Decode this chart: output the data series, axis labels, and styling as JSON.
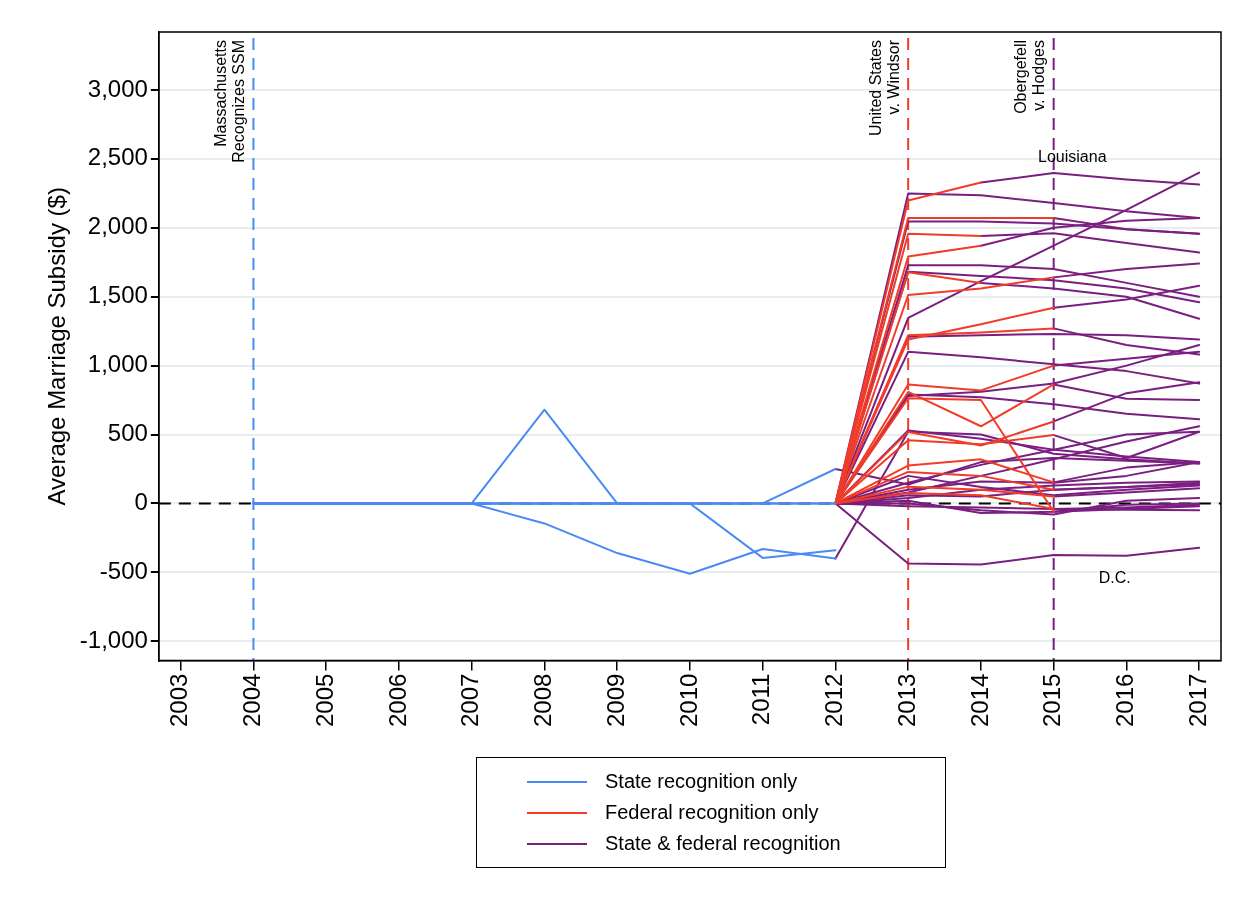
{
  "chart_data": {
    "type": "line",
    "ylabel": "Average Marriage Subsidy ($)",
    "xlim": [
      2002.7,
      2017.3
    ],
    "xticks": [
      2003,
      2004,
      2005,
      2006,
      2007,
      2008,
      2009,
      2010,
      2011,
      2012,
      2013,
      2014,
      2015,
      2016,
      2017
    ],
    "ylim": [
      -1140,
      3420
    ],
    "yticks": [
      {
        "value": -1000,
        "label": "-1,000"
      },
      {
        "value": -500,
        "label": "-500"
      },
      {
        "value": 0,
        "label": "0"
      },
      {
        "value": 500,
        "label": "500"
      },
      {
        "value": 1000,
        "label": "1,000"
      },
      {
        "value": 1500,
        "label": "1,500"
      },
      {
        "value": 2000,
        "label": "2,000"
      },
      {
        "value": 2500,
        "label": "2,500"
      },
      {
        "value": 3000,
        "label": "3,000"
      }
    ],
    "grid": "y",
    "legend": "bottom",
    "marker": "none",
    "line_style": "solid",
    "ref_lines": [
      {
        "axis": "y",
        "value": 0,
        "label": null,
        "color": "#000000",
        "line_style": "dashed"
      },
      {
        "axis": "x",
        "value": 2004,
        "label": "Massachusetts\nRecognizes SSM",
        "color": "#4a8af4",
        "line_style": "dashed"
      },
      {
        "axis": "x",
        "value": 2013,
        "label": "United States\nv. Windsor",
        "color": "#f03c28",
        "line_style": "dashed"
      },
      {
        "axis": "x",
        "value": 2015,
        "label": "Obergefell\nv. Hodges",
        "color": "#7a1f80",
        "line_style": "dashed"
      }
    ],
    "annotations": [
      "Louisiana",
      "D.C."
    ],
    "series": [
      {
        "name": "State recognition only",
        "color": "#4a8af4",
        "x": [
          2004,
          2005,
          2006,
          2007,
          2008,
          2009,
          2010,
          2011,
          2012
        ],
        "values": [
          0,
          0,
          0,
          0,
          680,
          0,
          0,
          0,
          0
        ]
      },
      {
        "color": "#4a8af4",
        "x": [
          2004,
          2005,
          2006,
          2007,
          2008,
          2009,
          2010,
          2011,
          2012
        ],
        "values": [
          0,
          0,
          0,
          0,
          -145,
          -360,
          -510,
          -330,
          -400
        ]
      },
      {
        "color": "#4a8af4",
        "x": [
          2004,
          2005,
          2006,
          2007,
          2008,
          2009,
          2010,
          2011,
          2012
        ],
        "values": [
          0,
          0,
          0,
          0,
          0,
          0,
          0,
          -395,
          -340
        ]
      },
      {
        "color": "#4a8af4",
        "x": [
          2004,
          2005,
          2006,
          2007,
          2008,
          2009,
          2010,
          2011,
          2012
        ],
        "values": [
          0,
          0,
          0,
          0,
          0,
          0,
          0,
          0,
          250
        ]
      },
      {
        "color": "#4a8af4",
        "x": [
          2004,
          2005,
          2006,
          2007,
          2008,
          2009,
          2010,
          2011,
          2012
        ],
        "values": [
          0,
          0,
          0,
          0,
          0,
          0,
          0,
          0,
          0
        ]
      },
      {
        "name": "Federal recognition only",
        "color": "#f03c28",
        "x": [
          2012,
          2013,
          2014
        ],
        "values": [
          0,
          2198,
          2328
        ]
      },
      {
        "color": "#f03c28",
        "x": [
          2012,
          2013,
          2014,
          2015
        ],
        "values": [
          0,
          2071,
          2071,
          2071
        ]
      },
      {
        "color": "#f03c28",
        "x": [
          2012,
          2013,
          2014
        ],
        "values": [
          0,
          1957,
          1940
        ]
      },
      {
        "color": "#f03c28",
        "x": [
          2012,
          2013,
          2014
        ],
        "values": [
          0,
          1791,
          1870
        ]
      },
      {
        "color": "#f03c28",
        "x": [
          2012,
          2013,
          2014
        ],
        "values": [
          0,
          1677,
          1600
        ]
      },
      {
        "color": "#f03c28",
        "x": [
          2012,
          2013,
          2014,
          2015
        ],
        "values": [
          0,
          1512,
          1560,
          1640
        ]
      },
      {
        "color": "#f03c28",
        "x": [
          2012,
          2013,
          2014,
          2015
        ],
        "values": [
          0,
          1190,
          1300,
          1420
        ]
      },
      {
        "color": "#f03c28",
        "x": [
          2012,
          2013,
          2014,
          2015
        ],
        "values": [
          0,
          1220,
          1240,
          1270
        ]
      },
      {
        "color": "#f03c28",
        "x": [
          2012,
          2013,
          2014,
          2015
        ],
        "values": [
          0,
          863,
          820,
          1000
        ]
      },
      {
        "color": "#f03c28",
        "x": [
          2012,
          2013,
          2014,
          2015
        ],
        "values": [
          0,
          809,
          560,
          863
        ]
      },
      {
        "color": "#f03c28",
        "x": [
          2012,
          2013,
          2014,
          2015
        ],
        "values": [
          0,
          763,
          750,
          -60
        ]
      },
      {
        "color": "#f03c28",
        "x": [
          2012,
          2013,
          2014,
          2015
        ],
        "values": [
          0,
          519,
          420,
          595
        ]
      },
      {
        "color": "#f03c28",
        "x": [
          2012,
          2013,
          2014,
          2015
        ],
        "values": [
          0,
          458,
          430,
          496
        ]
      },
      {
        "color": "#f03c28",
        "x": [
          2012,
          2013,
          2014,
          2015
        ],
        "values": [
          0,
          275,
          320,
          153
        ]
      },
      {
        "color": "#f03c28",
        "x": [
          2012,
          2013,
          2014,
          2015
        ],
        "values": [
          0,
          229,
          200,
          99
        ]
      },
      {
        "color": "#f03c28",
        "x": [
          2012,
          2013,
          2014,
          2015
        ],
        "values": [
          0,
          122,
          100,
          50
        ]
      },
      {
        "color": "#f03c28",
        "x": [
          2012,
          2013,
          2014,
          2015
        ],
        "values": [
          0,
          76,
          60,
          -40
        ]
      },
      {
        "name": "State & federal recognition",
        "color": "#7a1f80",
        "x": [
          2012,
          2013,
          2014,
          2015,
          2016,
          2017
        ],
        "values": [
          0,
          2249,
          2236,
          2180,
          2120,
          2071
        ]
      },
      {
        "color": "#7a1f80",
        "x": [
          2012,
          2013,
          2014,
          2015,
          2016,
          2017
        ],
        "values": [
          0,
          2046,
          2046,
          2030,
          1990,
          1957
        ]
      },
      {
        "color": "#7a1f80",
        "x": [
          2012,
          2013,
          2014,
          2015,
          2016,
          2017
        ],
        "values": [
          0,
          1346,
          1613,
          1870,
          2130,
          2400
        ]
      },
      {
        "color": "#7a1f80",
        "x": [
          2012,
          2013,
          2014,
          2015,
          2016,
          2017
        ],
        "values": [
          0,
          1728,
          1728,
          1700,
          1600,
          1499
        ]
      },
      {
        "color": "#7a1f80",
        "x": [
          2012,
          2013,
          2014,
          2015,
          2016,
          2017
        ],
        "values": [
          0,
          1680,
          1650,
          1620,
          1560,
          1460
        ]
      },
      {
        "color": "#7a1f80",
        "x": [
          2012,
          2013,
          2014,
          2015,
          2016,
          2017
        ],
        "values": [
          0,
          1100,
          1060,
          1010,
          960,
          870
        ]
      },
      {
        "color": "#7a1f80",
        "x": [
          2012,
          2013,
          2014,
          2015,
          2016,
          2017
        ],
        "values": [
          0,
          1210,
          1220,
          1230,
          1220,
          1190
        ]
      },
      {
        "color": "#7a1f80",
        "x": [
          2012,
          2013,
          2014,
          2015,
          2016,
          2017
        ],
        "values": [
          0,
          780,
          810,
          870,
          1000,
          1150
        ]
      },
      {
        "color": "#7a1f80",
        "x": [
          2012,
          2013,
          2014,
          2015,
          2016,
          2017
        ],
        "values": [
          0,
          790,
          770,
          720,
          650,
          610
        ]
      },
      {
        "color": "#7a1f80",
        "x": [
          2012,
          2013,
          2014,
          2015,
          2016,
          2017
        ],
        "values": [
          0,
          530,
          470,
          390,
          340,
          300
        ]
      },
      {
        "color": "#7a1f80",
        "x": [
          2012,
          2013,
          2014,
          2015,
          2016,
          2017
        ],
        "values": [
          0,
          150,
          280,
          390,
          500,
          520
        ]
      },
      {
        "color": "#7a1f80",
        "x": [
          2012,
          2013,
          2014,
          2015,
          2016,
          2017
        ],
        "values": [
          0,
          80,
          200,
          320,
          450,
          560
        ]
      },
      {
        "color": "#7a1f80",
        "x": [
          2012,
          2013,
          2014,
          2015,
          2016,
          2017
        ],
        "values": [
          0,
          40,
          100,
          130,
          150,
          160
        ]
      },
      {
        "color": "#7a1f80",
        "x": [
          2012,
          2013,
          2014,
          2015,
          2016,
          2017
        ],
        "values": [
          0,
          -20,
          -30,
          -40,
          -45,
          -50
        ]
      },
      {
        "color": "#7a1f80",
        "x": [
          2012,
          2013,
          2014,
          2015,
          2016,
          2017
        ],
        "values": [
          0,
          -435,
          -443,
          -374,
          -379,
          -321
        ]
      },
      {
        "color": "#7a1f80",
        "x": [
          2012,
          2013,
          2014,
          2015,
          2016,
          2017
        ],
        "values": [
          -400,
          520,
          500,
          360,
          320,
          290
        ]
      },
      {
        "color": "#7a1f80",
        "x": [
          2012,
          2013,
          2014,
          2015,
          2016,
          2017
        ],
        "values": [
          250,
          137,
          300,
          330,
          310,
          290
        ]
      },
      {
        "color": "#7a1f80",
        "x": [
          2012,
          2013,
          2014,
          2015,
          2016,
          2017
        ],
        "values": [
          0,
          20,
          -70,
          -60,
          -10,
          0
        ]
      },
      {
        "color": "#7a1f80",
        "x": [
          2012,
          2013,
          2014,
          2015,
          2016,
          2017
        ],
        "values": [
          0,
          60,
          50,
          100,
          120,
          140
        ]
      },
      {
        "color": "#7a1f80",
        "x": [
          2012,
          2013,
          2014,
          2015,
          2016,
          2017
        ],
        "values": [
          0,
          100,
          160,
          150,
          200,
          300
        ]
      },
      {
        "color": "#7a1f80",
        "x": [
          2012,
          2013,
          2014,
          2015,
          2016,
          2017
        ],
        "values": [
          0,
          200,
          120,
          60,
          100,
          130
        ]
      },
      {
        "color": "#7a1f80",
        "x": [
          2012,
          2013,
          2014,
          2015,
          2016,
          2017
        ],
        "values": [
          0,
          0,
          -50,
          -80,
          20,
          40
        ]
      },
      {
        "color": "#7a1f80",
        "x": [
          2014,
          2015,
          2016,
          2017
        ],
        "values": [
          2328,
          2397,
          2350,
          2313
        ]
      },
      {
        "color": "#7a1f80",
        "x": [
          2014,
          2015,
          2016,
          2017
        ],
        "values": [
          1940,
          1960,
          1890,
          1820
        ]
      },
      {
        "color": "#7a1f80",
        "x": [
          2014,
          2015,
          2016,
          2017
        ],
        "values": [
          1870,
          2000,
          2050,
          2071
        ]
      },
      {
        "color": "#7a1f80",
        "x": [
          2014,
          2015,
          2016,
          2017
        ],
        "values": [
          1600,
          1560,
          1500,
          1340
        ]
      },
      {
        "color": "#7a1f80",
        "x": [
          2015,
          2016,
          2017
        ],
        "values": [
          2071,
          1990,
          1957
        ]
      },
      {
        "color": "#7a1f80",
        "x": [
          2015,
          2016,
          2017
        ],
        "values": [
          1640,
          1700,
          1740
        ]
      },
      {
        "color": "#7a1f80",
        "x": [
          2015,
          2016,
          2017
        ],
        "values": [
          1420,
          1480,
          1580
        ]
      },
      {
        "color": "#7a1f80",
        "x": [
          2015,
          2016,
          2017
        ],
        "values": [
          1270,
          1150,
          1080
        ]
      },
      {
        "color": "#7a1f80",
        "x": [
          2015,
          2016,
          2017
        ],
        "values": [
          1000,
          1050,
          1100
        ]
      },
      {
        "color": "#7a1f80",
        "x": [
          2015,
          2016,
          2017
        ],
        "values": [
          863,
          760,
          750
        ]
      },
      {
        "color": "#7a1f80",
        "x": [
          2015,
          2016,
          2017
        ],
        "values": [
          -60,
          -40,
          -20
        ]
      },
      {
        "color": "#7a1f80",
        "x": [
          2015,
          2016,
          2017
        ],
        "values": [
          595,
          800,
          880
        ]
      },
      {
        "color": "#7a1f80",
        "x": [
          2015,
          2016,
          2017
        ],
        "values": [
          496,
          330,
          520
        ]
      },
      {
        "color": "#7a1f80",
        "x": [
          2015,
          2016,
          2017
        ],
        "values": [
          153,
          260,
          300
        ]
      },
      {
        "color": "#7a1f80",
        "x": [
          2015,
          2016,
          2017
        ],
        "values": [
          99,
          120,
          150
        ]
      },
      {
        "color": "#7a1f80",
        "x": [
          2015,
          2016,
          2017
        ],
        "values": [
          50,
          80,
          110
        ]
      },
      {
        "color": "#7a1f80",
        "x": [
          2015,
          2016,
          2017
        ],
        "values": [
          -40,
          -30,
          -10
        ]
      }
    ]
  }
}
